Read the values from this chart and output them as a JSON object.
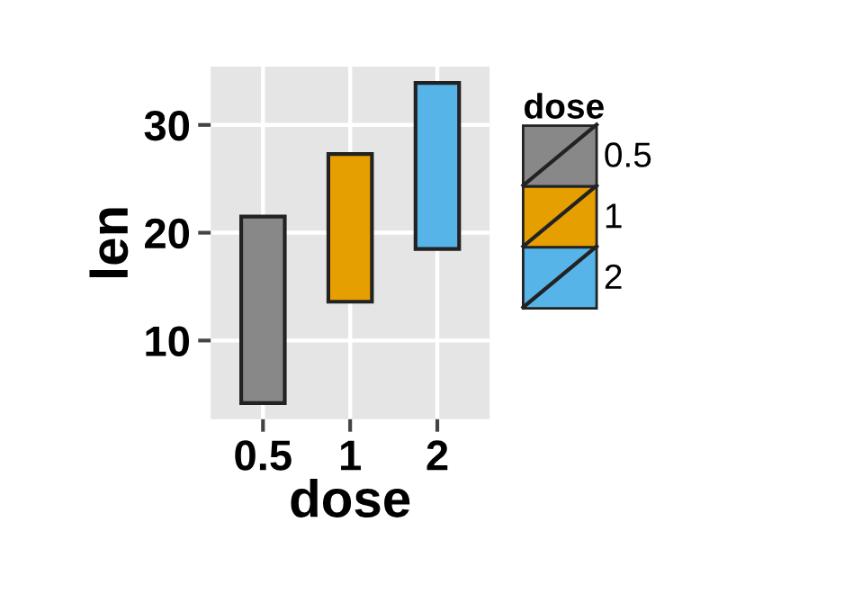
{
  "chart_data": {
    "type": "bar",
    "xlabel": "dose",
    "ylabel": "len",
    "legend_title": "dose",
    "legend": "right",
    "grid": true,
    "categories": [
      "0.5",
      "1",
      "2"
    ],
    "ylim": [
      2.7,
      35.4
    ],
    "yticks": [
      10,
      20,
      30
    ],
    "series": [
      {
        "name": "0.5",
        "color": "#888888",
        "base": [
          4.2,
          null,
          null
        ],
        "values": [
          17.3,
          null,
          null
        ]
      },
      {
        "name": "1",
        "color": "#e69f00",
        "base": [
          null,
          13.6,
          null
        ],
        "values": [
          null,
          13.7,
          null
        ]
      },
      {
        "name": "2",
        "color": "#56b4e9",
        "base": [
          null,
          null,
          18.5
        ],
        "values": [
          null,
          null,
          15.4
        ]
      }
    ]
  }
}
